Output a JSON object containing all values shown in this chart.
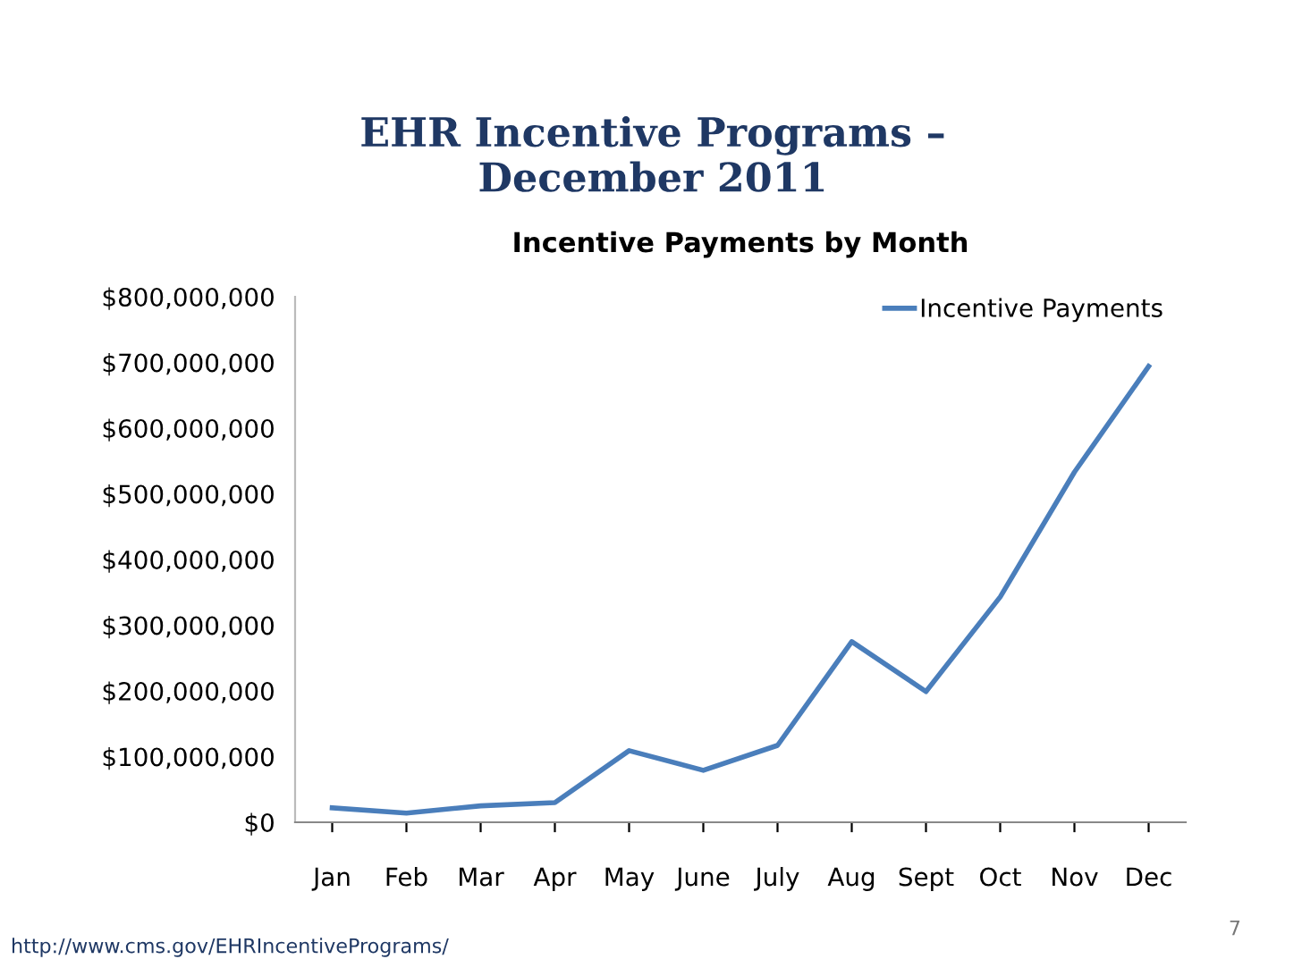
{
  "chart_data": {
    "type": "line",
    "title": "EHR Incentive Programs –\nDecember 2011",
    "subtitle": "Incentive Payments by Month",
    "categories": [
      "Jan",
      "Feb",
      "Mar",
      "Apr",
      "May",
      "June",
      "July",
      "Aug",
      "Sept",
      "Oct",
      "Nov",
      "Dec"
    ],
    "series": [
      {
        "name": "Incentive Payments",
        "color": "#4a7ebb",
        "values": [
          22000000,
          14000000,
          25000000,
          30000000,
          109000000,
          79000000,
          117000000,
          275000000,
          199000000,
          343000000,
          533000000,
          694000000
        ]
      }
    ],
    "ylim": [
      0,
      800000000
    ],
    "yticks": [
      {
        "value": 0,
        "label": "$0"
      },
      {
        "value": 100000000,
        "label": "$100,000,000"
      },
      {
        "value": 200000000,
        "label": "$200,000,000"
      },
      {
        "value": 300000000,
        "label": "$300,000,000"
      },
      {
        "value": 400000000,
        "label": "$400,000,000"
      },
      {
        "value": 500000000,
        "label": "$500,000,000"
      },
      {
        "value": 600000000,
        "label": "$600,000,000"
      },
      {
        "value": 700000000,
        "label": "$700,000,000"
      },
      {
        "value": 800000000,
        "label": "$800,000,000"
      }
    ],
    "grid": false,
    "legend": "top right",
    "marker": "none",
    "line_style": "solid",
    "annotations": [
      "http://www.cms.gov/EHRIncentivePrograms/",
      "7"
    ]
  }
}
